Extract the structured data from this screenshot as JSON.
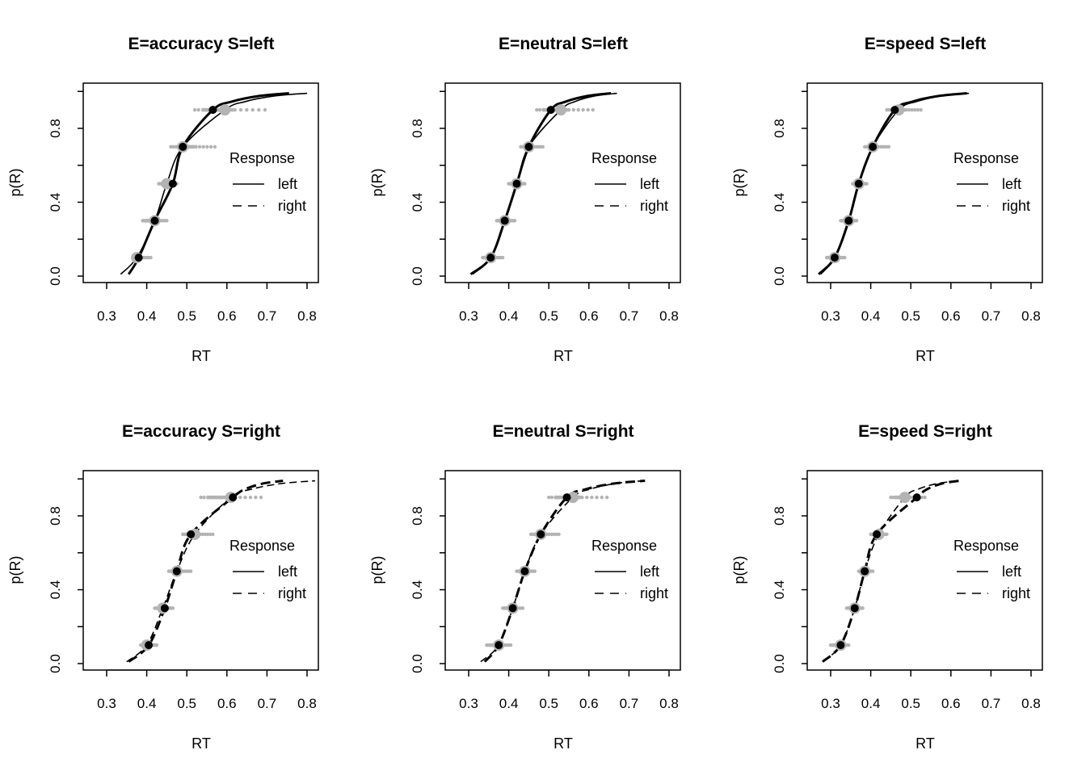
{
  "chart_data": [
    {
      "type": "line",
      "title": "E=accuracy S=left",
      "xlabel": "RT",
      "ylabel": "p(R)",
      "xlim": [
        0.25,
        0.82
      ],
      "ylim": [
        0,
        1
      ],
      "x_ticks": [
        "0.3",
        "0.4",
        "0.5",
        "0.6",
        "0.7",
        "0.8"
      ],
      "y_ticks": [
        "0.0",
        "0.4",
        "0.8"
      ],
      "legend": {
        "title": "Response",
        "entries": [
          "left",
          "right"
        ],
        "position": "right"
      },
      "observed_line": "solid",
      "probs": [
        0.1,
        0.3,
        0.5,
        0.7,
        0.9
      ],
      "observed_quantiles": [
        0.38,
        0.42,
        0.465,
        0.49,
        0.565
      ],
      "predicted_quantiles": [
        0.375,
        0.42,
        0.45,
        0.49,
        0.595
      ],
      "observed_range": [
        0.355,
        0.755
      ],
      "predicted_range": [
        0.335,
        0.8
      ],
      "predicted_spread": [
        [
          0.365,
          0.41
        ],
        [
          0.39,
          0.45
        ],
        [
          0.43,
          0.475
        ],
        [
          0.46,
          0.57
        ],
        [
          0.52,
          0.695
        ]
      ]
    },
    {
      "type": "line",
      "title": "E=neutral S=left",
      "xlabel": "RT",
      "ylabel": "p(R)",
      "xlim": [
        0.25,
        0.82
      ],
      "ylim": [
        0,
        1
      ],
      "x_ticks": [
        "0.3",
        "0.4",
        "0.5",
        "0.6",
        "0.7",
        "0.8"
      ],
      "y_ticks": [
        "0.0",
        "0.4",
        "0.8"
      ],
      "legend": {
        "title": "Response",
        "entries": [
          "left",
          "right"
        ],
        "position": "right"
      },
      "observed_line": "solid",
      "probs": [
        0.1,
        0.3,
        0.5,
        0.7,
        0.9
      ],
      "observed_quantiles": [
        0.355,
        0.39,
        0.42,
        0.45,
        0.505
      ],
      "predicted_quantiles": [
        0.355,
        0.39,
        0.42,
        0.45,
        0.53
      ],
      "observed_range": [
        0.305,
        0.655
      ],
      "predicted_range": [
        0.31,
        0.67
      ],
      "predicted_spread": [
        [
          0.335,
          0.385
        ],
        [
          0.37,
          0.415
        ],
        [
          0.4,
          0.44
        ],
        [
          0.43,
          0.485
        ],
        [
          0.47,
          0.61
        ]
      ]
    },
    {
      "type": "line",
      "title": "E=speed S=left",
      "xlabel": "RT",
      "ylabel": "p(R)",
      "xlim": [
        0.25,
        0.82
      ],
      "ylim": [
        0,
        1
      ],
      "x_ticks": [
        "0.3",
        "0.4",
        "0.5",
        "0.6",
        "0.7",
        "0.8"
      ],
      "y_ticks": [
        "0.0",
        "0.4",
        "0.8"
      ],
      "legend": {
        "title": "Response",
        "entries": [
          "left",
          "right"
        ],
        "position": "right"
      },
      "observed_line": "solid",
      "probs": [
        0.1,
        0.3,
        0.5,
        0.7,
        0.9
      ],
      "observed_quantiles": [
        0.31,
        0.345,
        0.37,
        0.405,
        0.46
      ],
      "predicted_quantiles": [
        0.31,
        0.345,
        0.37,
        0.405,
        0.47
      ],
      "observed_range": [
        0.27,
        0.64
      ],
      "predicted_range": [
        0.275,
        0.645
      ],
      "predicted_spread": [
        [
          0.29,
          0.335
        ],
        [
          0.325,
          0.365
        ],
        [
          0.355,
          0.39
        ],
        [
          0.385,
          0.445
        ],
        [
          0.44,
          0.525
        ]
      ]
    },
    {
      "type": "line",
      "title": "E=accuracy S=right",
      "xlabel": "RT",
      "ylabel": "p(R)",
      "xlim": [
        0.25,
        0.82
      ],
      "ylim": [
        0,
        1
      ],
      "x_ticks": [
        "0.3",
        "0.4",
        "0.5",
        "0.6",
        "0.7",
        "0.8"
      ],
      "y_ticks": [
        "0.0",
        "0.4",
        "0.8"
      ],
      "legend": {
        "title": "Response",
        "entries": [
          "left",
          "right"
        ],
        "position": "right"
      },
      "observed_line": "dashed",
      "probs": [
        0.1,
        0.3,
        0.5,
        0.7,
        0.9
      ],
      "observed_quantiles": [
        0.405,
        0.445,
        0.475,
        0.51,
        0.615
      ],
      "predicted_quantiles": [
        0.4,
        0.44,
        0.475,
        0.52,
        0.61
      ],
      "observed_range": [
        0.355,
        0.74
      ],
      "predicted_range": [
        0.35,
        0.82
      ],
      "predicted_spread": [
        [
          0.385,
          0.425
        ],
        [
          0.42,
          0.465
        ],
        [
          0.455,
          0.51
        ],
        [
          0.49,
          0.565
        ],
        [
          0.535,
          0.685
        ]
      ]
    },
    {
      "type": "line",
      "title": "E=neutral S=right",
      "xlabel": "RT",
      "ylabel": "p(R)",
      "xlim": [
        0.25,
        0.82
      ],
      "ylim": [
        0,
        1
      ],
      "x_ticks": [
        "0.3",
        "0.4",
        "0.5",
        "0.6",
        "0.7",
        "0.8"
      ],
      "y_ticks": [
        "0.0",
        "0.4",
        "0.8"
      ],
      "legend": {
        "title": "Response",
        "entries": [
          "left",
          "right"
        ],
        "position": "right"
      },
      "observed_line": "dashed",
      "probs": [
        0.1,
        0.3,
        0.5,
        0.7,
        0.9
      ],
      "observed_quantiles": [
        0.375,
        0.41,
        0.44,
        0.48,
        0.545
      ],
      "predicted_quantiles": [
        0.375,
        0.41,
        0.44,
        0.48,
        0.56
      ],
      "observed_range": [
        0.34,
        0.74
      ],
      "predicted_range": [
        0.33,
        0.735
      ],
      "predicted_spread": [
        [
          0.345,
          0.405
        ],
        [
          0.385,
          0.435
        ],
        [
          0.42,
          0.465
        ],
        [
          0.455,
          0.525
        ],
        [
          0.5,
          0.645
        ]
      ]
    },
    {
      "type": "line",
      "title": "E=speed S=right",
      "xlabel": "RT",
      "ylabel": "p(R)",
      "xlim": [
        0.25,
        0.82
      ],
      "ylim": [
        0,
        1
      ],
      "x_ticks": [
        "0.3",
        "0.4",
        "0.5",
        "0.6",
        "0.7",
        "0.8"
      ],
      "y_ticks": [
        "0.0",
        "0.4",
        "0.8"
      ],
      "legend": {
        "title": "Response",
        "entries": [
          "left",
          "right"
        ],
        "position": "right"
      },
      "observed_line": "dashed",
      "probs": [
        0.1,
        0.3,
        0.5,
        0.7,
        0.9
      ],
      "observed_quantiles": [
        0.325,
        0.36,
        0.385,
        0.415,
        0.515
      ],
      "predicted_quantiles": [
        0.325,
        0.36,
        0.385,
        0.42,
        0.485
      ],
      "observed_range": [
        0.28,
        0.62
      ],
      "predicted_range": [
        0.28,
        0.62
      ],
      "predicted_spread": [
        [
          0.3,
          0.345
        ],
        [
          0.34,
          0.38
        ],
        [
          0.37,
          0.405
        ],
        [
          0.4,
          0.44
        ],
        [
          0.45,
          0.535
        ]
      ]
    }
  ],
  "colors": {
    "observed": "#000000",
    "predicted": "#b3b3b3"
  }
}
